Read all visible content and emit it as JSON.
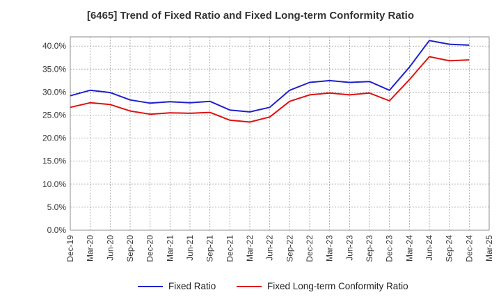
{
  "title": "[6465]  Trend of Fixed Ratio and Fixed Long-term Conformity Ratio",
  "chart_data": {
    "type": "line",
    "title": "[6465]  Trend of Fixed Ratio and Fixed Long-term Conformity Ratio",
    "xlabel": "",
    "ylabel": "",
    "ylim": [
      0,
      42
    ],
    "y_ticks": [
      "0.0%",
      "5.0%",
      "10.0%",
      "15.0%",
      "20.0%",
      "25.0%",
      "30.0%",
      "35.0%",
      "40.0%"
    ],
    "y_tick_values": [
      0,
      5,
      10,
      15,
      20,
      25,
      30,
      35,
      40
    ],
    "x_tick_labels": [
      "Dec-19",
      "Mar-20",
      "Jun-20",
      "Sep-20",
      "Dec-20",
      "Mar-21",
      "Jun-21",
      "Sep-21",
      "Dec-21",
      "Mar-22",
      "Jun-22",
      "Sep-22",
      "Dec-22",
      "Mar-23",
      "Jun-23",
      "Sep-23",
      "Dec-23",
      "Mar-24",
      "Jun-24",
      "Sep-24",
      "Dec-24",
      "Mar-25"
    ],
    "x": [
      "Dec-19",
      "Mar-20",
      "Jun-20",
      "Sep-20",
      "Dec-20",
      "Mar-21",
      "Jun-21",
      "Sep-21",
      "Dec-21",
      "Mar-22",
      "Jun-22",
      "Sep-22",
      "Dec-22",
      "Mar-23",
      "Jun-23",
      "Sep-23",
      "Dec-23",
      "Mar-24",
      "Jun-24",
      "Sep-24",
      "Dec-24"
    ],
    "grid": true,
    "legend_position": "bottom",
    "series": [
      {
        "name": "Fixed Ratio",
        "color": "#1f1fcf",
        "values": [
          29.2,
          30.4,
          29.9,
          28.3,
          27.6,
          27.9,
          27.7,
          28.0,
          26.1,
          25.7,
          26.7,
          30.4,
          32.1,
          32.5,
          32.1,
          32.3,
          30.4,
          35.4,
          41.2,
          40.4,
          40.2
        ]
      },
      {
        "name": "Fixed Long-term Conformity Ratio",
        "color": "#e01010",
        "values": [
          26.7,
          27.7,
          27.3,
          25.9,
          25.2,
          25.5,
          25.4,
          25.6,
          23.9,
          23.5,
          24.6,
          28.0,
          29.4,
          29.8,
          29.4,
          29.8,
          28.1,
          32.7,
          37.7,
          36.8,
          37.0
        ]
      }
    ]
  }
}
